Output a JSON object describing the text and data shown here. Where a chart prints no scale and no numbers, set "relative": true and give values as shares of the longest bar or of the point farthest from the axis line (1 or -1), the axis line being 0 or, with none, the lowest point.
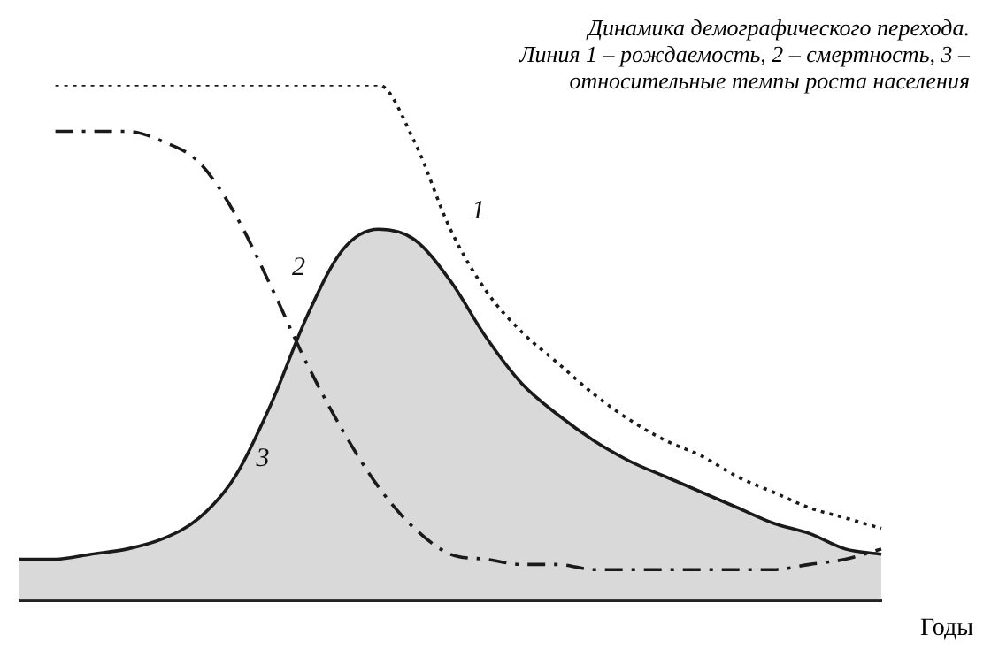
{
  "chart_data": {
    "type": "line",
    "title": "Динамика демографического перехода.",
    "subtitle": "Линия 1 – рождаемость, 2 – смертность, 3 – относительные темпы роста населения",
    "xlabel": "Годы",
    "relative": true,
    "grid": false,
    "legend": false,
    "marker": "none",
    "categories": [
      null,
      null,
      null,
      null,
      null,
      null,
      null,
      null,
      null,
      null,
      null,
      null,
      null,
      null,
      null,
      null,
      null,
      null,
      null,
      null,
      null,
      null,
      null,
      null,
      null
    ],
    "series": [
      {
        "name": "1",
        "color": "#1a1a1a",
        "line_style": "dotted",
        "values": [
          null,
          1,
          1,
          1,
          1,
          1,
          1,
          1,
          1,
          1,
          1,
          0.89,
          0.72,
          0.6,
          0.52,
          0.46,
          0.4,
          0.35,
          0.31,
          0.28,
          0.24,
          0.21,
          0.18,
          0.16,
          0.14
        ]
      },
      {
        "name": "2",
        "color": "#1a1a1a",
        "line_style": "dashed",
        "values": [
          null,
          0.91,
          0.91,
          0.91,
          0.89,
          0.85,
          0.75,
          0.61,
          0.46,
          0.33,
          0.22,
          0.14,
          0.09,
          0.08,
          0.07,
          0.07,
          0.06,
          0.06,
          0.06,
          0.06,
          0.06,
          0.06,
          0.07,
          0.08,
          0.1
        ]
      },
      {
        "name": "3",
        "color": "#1a1a1a",
        "type": "area",
        "line_style": "solid",
        "values": [
          0.08,
          0.08,
          0.09,
          0.1,
          0.12,
          0.16,
          0.24,
          0.38,
          0.55,
          0.68,
          0.72,
          0.7,
          0.62,
          0.51,
          0.42,
          0.36,
          0.31,
          0.27,
          0.24,
          0.21,
          0.18,
          0.15,
          0.13,
          0.1,
          0.09
        ]
      }
    ]
  }
}
